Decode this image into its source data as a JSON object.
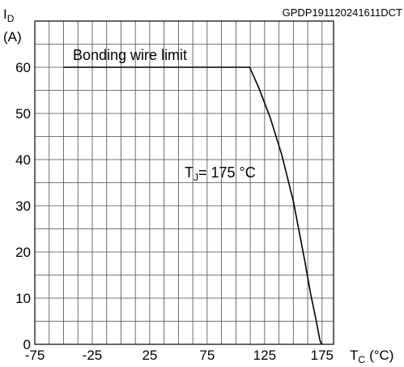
{
  "chart_data": {
    "type": "line",
    "doc_code": "GPDP191120241611DCT",
    "y_axis": {
      "symbol": "I",
      "subscript": "D",
      "unit": "(A)"
    },
    "x_axis": {
      "symbol": "T",
      "subscript": "C",
      "unit": "(°C)"
    },
    "xlim": [
      -75,
      185
    ],
    "ylim": [
      0,
      70
    ],
    "x_ticks": [
      "-75",
      "-25",
      "25",
      "75",
      "125",
      "175"
    ],
    "x_tick_values": [
      -75,
      -25,
      25,
      75,
      125,
      175
    ],
    "y_ticks": [
      "0",
      "10",
      "20",
      "30",
      "40",
      "50",
      "60"
    ],
    "y_tick_values": [
      0,
      10,
      20,
      30,
      40,
      50,
      60
    ],
    "grid": true,
    "annotations": {
      "bonding_wire": "Bonding wire limit",
      "tj": {
        "symbol": "T",
        "subscript": "J",
        "text": "= 175 °C"
      }
    },
    "series": [
      {
        "x": [
          -50,
          0,
          50,
          100,
          112,
          120,
          130,
          140,
          150,
          160,
          165,
          170,
          173,
          174,
          175,
          175
        ],
        "y": [
          60,
          60,
          60,
          60,
          60,
          55.5,
          49,
          41,
          31,
          18,
          11,
          5,
          1,
          0.3,
          0.1,
          0
        ]
      }
    ]
  }
}
